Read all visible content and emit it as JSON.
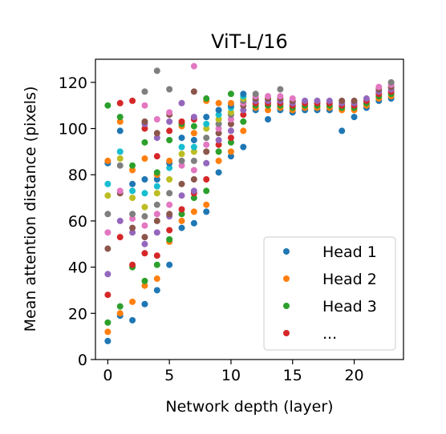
{
  "chart_data": {
    "type": "scatter",
    "title": "ViT-L/16",
    "xlabel": "Network depth (layer)",
    "ylabel": "Mean attention distance (pixels)",
    "xlim": [
      -1,
      24
    ],
    "ylim": [
      0,
      130
    ],
    "xticks": [
      0,
      5,
      10,
      15,
      20
    ],
    "yticks": [
      0,
      20,
      40,
      60,
      80,
      100,
      120
    ],
    "grid": false,
    "legend": {
      "position": "lower-right",
      "entries": [
        {
          "label": "Head 1",
          "color": "#1f77b4"
        },
        {
          "label": "Head 2",
          "color": "#ff7f0e"
        },
        {
          "label": "Head 3",
          "color": "#2ca02c"
        },
        {
          "label": "...",
          "color": "#d62728"
        }
      ]
    },
    "head_colors": [
      "#1f77b4",
      "#ff7f0e",
      "#2ca02c",
      "#d62728",
      "#9467bd",
      "#8c564b",
      "#e377c2",
      "#7f7f7f",
      "#bcbd22",
      "#17becf"
    ],
    "layers": [
      {
        "layer": 0,
        "values": [
          8,
          12,
          16,
          28,
          37,
          48,
          55,
          63,
          71,
          76,
          85,
          86,
          110
        ]
      },
      {
        "layer": 1,
        "values": [
          19,
          20,
          23,
          53,
          60,
          72,
          73,
          84,
          87,
          90,
          99,
          103,
          105,
          111
        ]
      },
      {
        "layer": 2,
        "values": [
          17,
          25,
          40,
          41,
          55,
          57,
          61,
          63,
          70,
          73,
          76,
          82,
          84,
          112
        ]
      },
      {
        "layer": 3,
        "values": [
          24,
          32,
          34,
          46,
          50,
          53,
          58,
          62,
          66,
          72,
          78,
          87,
          94,
          100,
          102,
          103,
          110,
          116
        ]
      },
      {
        "layer": 4,
        "values": [
          30,
          35,
          41,
          45,
          55,
          60,
          63,
          67,
          72,
          75,
          78,
          80,
          81,
          88,
          96,
          98,
          104,
          125
        ]
      },
      {
        "layer": 5,
        "values": [
          41,
          51,
          52,
          56,
          62,
          63,
          67,
          72,
          78,
          83,
          85,
          86,
          95,
          99,
          103,
          106,
          107,
          117
        ]
      },
      {
        "layer": 6,
        "values": [
          57,
          60,
          63,
          65,
          71,
          76,
          84,
          86,
          89,
          92,
          96,
          101,
          102,
          103,
          111
        ]
      },
      {
        "layer": 7,
        "values": [
          59,
          64,
          70,
          72,
          73,
          78,
          82,
          86,
          90,
          92,
          95,
          98,
          101,
          104,
          105,
          116,
          127
        ]
      },
      {
        "layer": 8,
        "values": [
          64,
          67,
          73,
          78,
          85,
          90,
          93,
          96,
          100,
          102,
          105,
          112,
          113
        ]
      },
      {
        "layer": 9,
        "values": [
          81,
          86,
          90,
          93,
          95,
          98,
          100,
          102,
          104,
          106,
          108,
          111
        ]
      },
      {
        "layer": 10,
        "values": [
          88,
          90,
          94,
          96,
          99,
          102,
          104,
          106,
          107,
          109,
          110,
          111,
          115
        ]
      },
      {
        "layer": 11,
        "values": [
          92,
          99,
          103,
          106,
          108,
          110,
          111,
          112,
          113,
          114,
          115
        ]
      },
      {
        "layer": 12,
        "values": [
          108,
          109,
          110,
          111,
          112,
          113,
          114,
          115
        ]
      },
      {
        "layer": 13,
        "values": [
          104,
          108,
          110,
          111,
          112,
          113,
          114
        ]
      },
      {
        "layer": 14,
        "values": [
          108,
          109,
          110,
          111,
          112,
          113,
          114,
          117
        ]
      },
      {
        "layer": 15,
        "values": [
          107,
          108,
          109,
          110,
          111,
          112,
          113
        ]
      },
      {
        "layer": 16,
        "values": [
          108,
          109,
          110,
          111,
          112
        ]
      },
      {
        "layer": 17,
        "values": [
          108,
          109,
          110,
          111,
          112
        ]
      },
      {
        "layer": 18,
        "values": [
          108,
          109,
          110,
          111,
          112
        ]
      },
      {
        "layer": 19,
        "values": [
          99,
          108,
          109,
          110,
          111,
          112
        ]
      },
      {
        "layer": 20,
        "values": [
          105,
          108,
          109,
          110,
          111,
          112
        ]
      },
      {
        "layer": 21,
        "values": [
          109,
          110,
          111,
          112,
          113
        ]
      },
      {
        "layer": 22,
        "values": [
          112,
          113,
          114,
          115,
          116,
          117,
          118
        ]
      },
      {
        "layer": 23,
        "values": [
          113,
          114,
          115,
          116,
          117,
          118,
          119,
          120
        ]
      }
    ]
  }
}
